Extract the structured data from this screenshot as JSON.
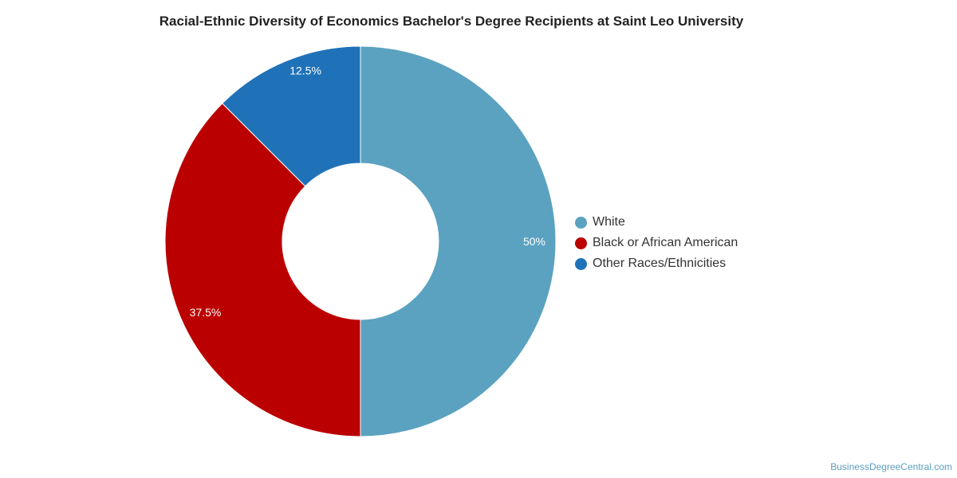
{
  "chart_data": {
    "type": "pie",
    "title": "Racial-Ethnic Diversity of Economics Bachelor's Degree Recipients at Saint Leo University",
    "donut": true,
    "legend_position": "right",
    "series": [
      {
        "name": "White",
        "value": 50,
        "label": "50%",
        "color": "#5ba2c0"
      },
      {
        "name": "Black or African American",
        "value": 37.5,
        "label": "37.5%",
        "color": "#bb0000"
      },
      {
        "name": "Other Races/Ethnicities",
        "value": 12.5,
        "label": "12.5%",
        "color": "#1f72b8"
      }
    ]
  },
  "watermark": "BusinessDegreeCentral.com"
}
